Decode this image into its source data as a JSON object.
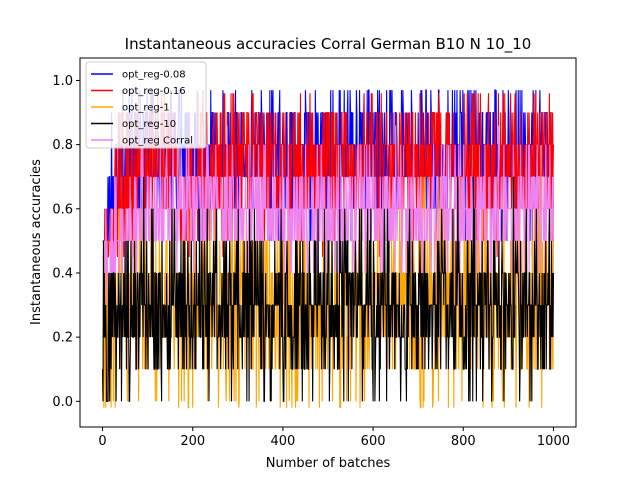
{
  "chart_data": {
    "type": "line",
    "title": "Instantaneous accuracies Corral German B10 N 10_10",
    "xlabel": "Number of batches",
    "ylabel": "Instantaneous accuracies",
    "xlim": [
      -50,
      1050
    ],
    "ylim": [
      -0.08,
      1.07
    ],
    "xticks": [
      0,
      200,
      400,
      600,
      800,
      1000
    ],
    "yticks": [
      0.0,
      0.2,
      0.4,
      0.6,
      0.8,
      1.0
    ],
    "xtick_labels": [
      "0",
      "200",
      "400",
      "600",
      "800",
      "1000"
    ],
    "ytick_labels": [
      "0.0",
      "0.2",
      "0.4",
      "0.6",
      "0.8",
      "1.0"
    ],
    "grid": false,
    "legend_position": "top-left",
    "n_batches": 1000,
    "value_step": 0.1,
    "series": [
      {
        "name": "opt_reg-0.08",
        "color": "#0000ff",
        "opacity": 1.0,
        "profile": {
          "early_x": [
            0,
            10,
            20,
            40,
            60,
            100
          ],
          "early_y": [
            0.3,
            0.5,
            0.6,
            0.72,
            0.78,
            0.78
          ],
          "plateau_mean": 0.78,
          "spread": 0.12,
          "min": 0.5,
          "max": 0.97
        }
      },
      {
        "name": "opt_reg-0.16",
        "color": "#ff0000",
        "opacity": 1.0,
        "profile": {
          "early_x": [
            0,
            10,
            20,
            40,
            60,
            100
          ],
          "early_y": [
            0.3,
            0.45,
            0.55,
            0.65,
            0.72,
            0.74
          ],
          "plateau_mean": 0.74,
          "spread": 0.13,
          "min": 0.45,
          "max": 0.96
        }
      },
      {
        "name": "opt_reg-1",
        "color": "#ffa500",
        "opacity": 1.0,
        "profile": {
          "early_x": [
            0,
            10,
            20,
            40,
            60,
            100
          ],
          "early_y": [
            0.3,
            0.3,
            0.3,
            0.3,
            0.3,
            0.3
          ],
          "plateau_mean": 0.3,
          "spread": 0.15,
          "min": -0.02,
          "max": 0.8
        }
      },
      {
        "name": "opt_reg-10",
        "color": "#000000",
        "opacity": 1.0,
        "profile": {
          "early_x": [
            0,
            10,
            20,
            40,
            60,
            100
          ],
          "early_y": [
            0.3,
            0.25,
            0.28,
            0.3,
            0.3,
            0.3
          ],
          "plateau_mean": 0.3,
          "spread": 0.14,
          "min": 0.0,
          "max": 0.7
        }
      },
      {
        "name": "opt_reg Corral",
        "color": "#ee82ee",
        "opacity": 1.0,
        "profile": {
          "early_x": [
            0,
            10,
            20,
            40,
            60,
            100
          ],
          "early_y": [
            0.3,
            0.35,
            0.45,
            0.55,
            0.58,
            0.6
          ],
          "plateau_mean": 0.6,
          "spread": 0.1,
          "min": 0.1,
          "max": 0.86
        }
      }
    ]
  }
}
